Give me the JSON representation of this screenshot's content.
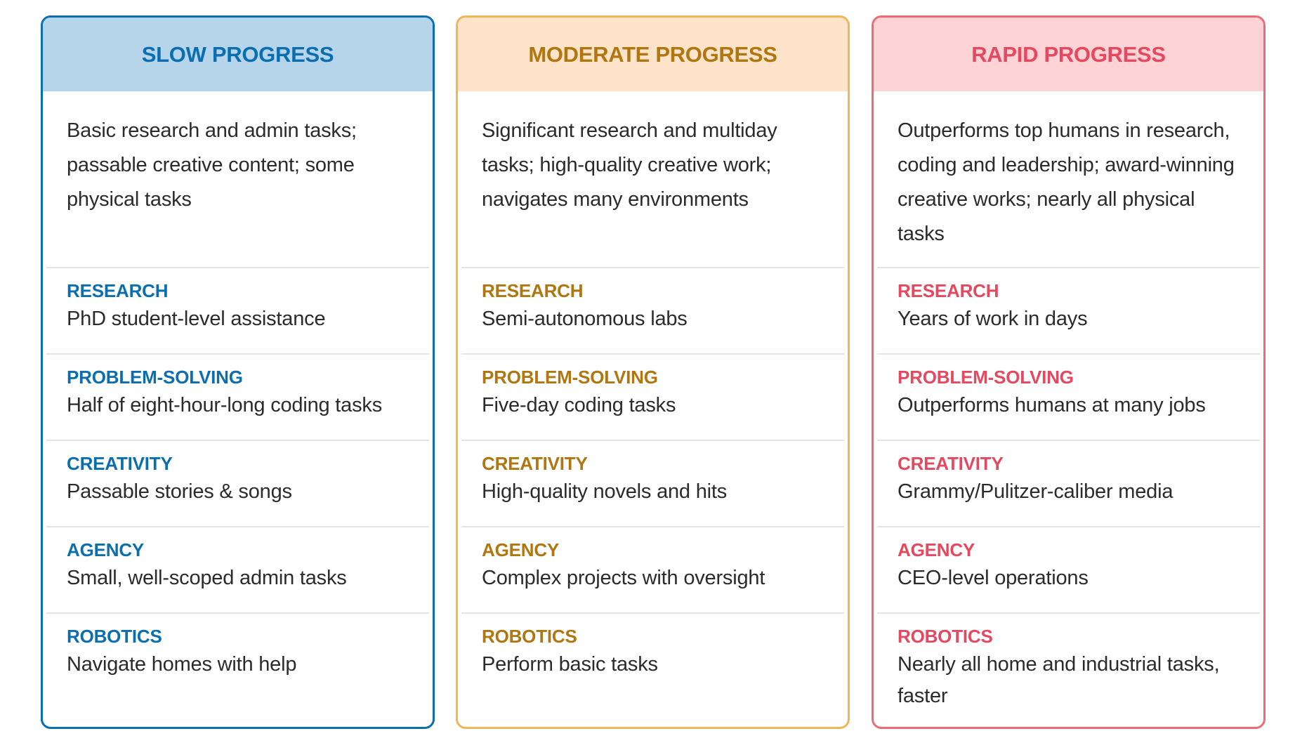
{
  "columns": [
    {
      "title": "SLOW PROGRESS",
      "accent": "#0b6eaf",
      "header_bg": "#b7d5ea",
      "summary": "Basic research and admin tasks; passable creative content; some physical tasks",
      "categories": [
        {
          "label": "RESEARCH",
          "desc": "PhD student-level assistance"
        },
        {
          "label": "PROBLEM-SOLVING",
          "desc": "Half of eight-hour-long coding tasks"
        },
        {
          "label": "CREATIVITY",
          "desc": "Passable stories & songs"
        },
        {
          "label": "AGENCY",
          "desc": "Small, well-scoped admin tasks"
        },
        {
          "label": "ROBOTICS",
          "desc": "Navigate homes with help"
        }
      ]
    },
    {
      "title": "MODERATE PROGRESS",
      "accent": "#b07610",
      "header_bg": "#fce3c9",
      "border": "#f0b65a",
      "summary": "Significant research and multiday tasks; high-quality creative work; navigates many environments",
      "categories": [
        {
          "label": "RESEARCH",
          "desc": "Semi-autonomous labs"
        },
        {
          "label": "PROBLEM-SOLVING",
          "desc": "Five-day coding tasks"
        },
        {
          "label": "CREATIVITY",
          "desc": "High-quality novels and hits"
        },
        {
          "label": "AGENCY",
          "desc": "Complex projects with oversight"
        },
        {
          "label": "ROBOTICS",
          "desc": "Perform basic tasks"
        }
      ]
    },
    {
      "title": "RAPID PROGRESS",
      "accent": "#e5485f",
      "header_bg": "#fdd3d6",
      "border": "#ef6a76",
      "summary": "Outperforms top humans in research, coding and leadership; award-winning creative works; nearly all physical tasks",
      "categories": [
        {
          "label": "RESEARCH",
          "desc": "Years of work in days"
        },
        {
          "label": "PROBLEM-SOLVING",
          "desc": "Outperforms humans at many jobs"
        },
        {
          "label": "CREATIVITY",
          "desc": "Grammy/Pulitzer-caliber media"
        },
        {
          "label": "AGENCY",
          "desc": "CEO-level operations"
        },
        {
          "label": "ROBOTICS",
          "desc": "Nearly all home and industrial tasks, faster"
        }
      ]
    }
  ]
}
